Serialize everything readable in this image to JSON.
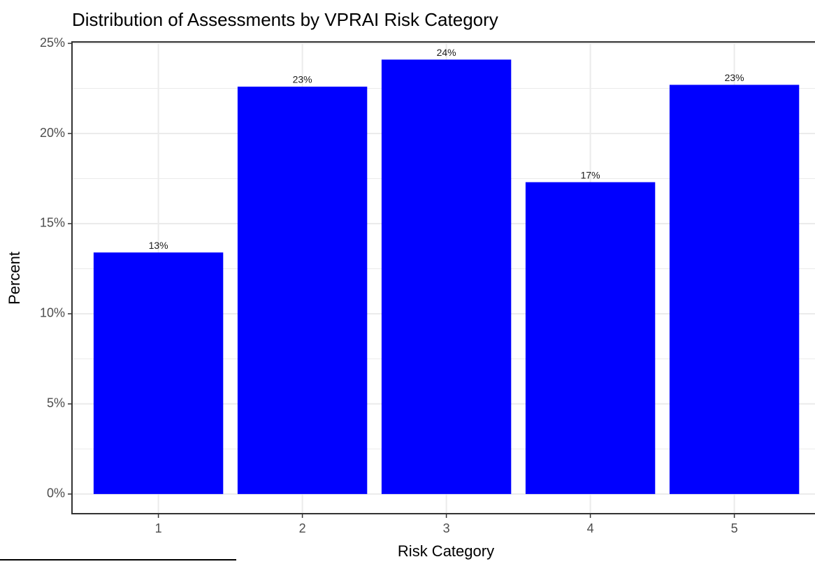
{
  "chart_data": {
    "type": "bar",
    "title": "Distribution of Assessments by VPRAI Risk Category",
    "x_label": "Risk Category",
    "y_label": "Percent",
    "categories": [
      "1",
      "2",
      "3",
      "4",
      "5"
    ],
    "values": [
      13.4,
      22.6,
      24.1,
      17.3,
      22.7
    ],
    "value_labels": [
      "13%",
      "23%",
      "24%",
      "17%",
      "23%"
    ],
    "color": "#0000ff",
    "ylim": [
      -1.09,
      25.08
    ],
    "yticks": [
      {
        "value": 0,
        "label": "0%"
      },
      {
        "value": 5,
        "label": "5%"
      },
      {
        "value": 10,
        "label": "10%"
      },
      {
        "value": 15,
        "label": "15%"
      },
      {
        "value": 20,
        "label": "20%"
      },
      {
        "value": 25,
        "label": "25%"
      }
    ],
    "grid": true
  }
}
